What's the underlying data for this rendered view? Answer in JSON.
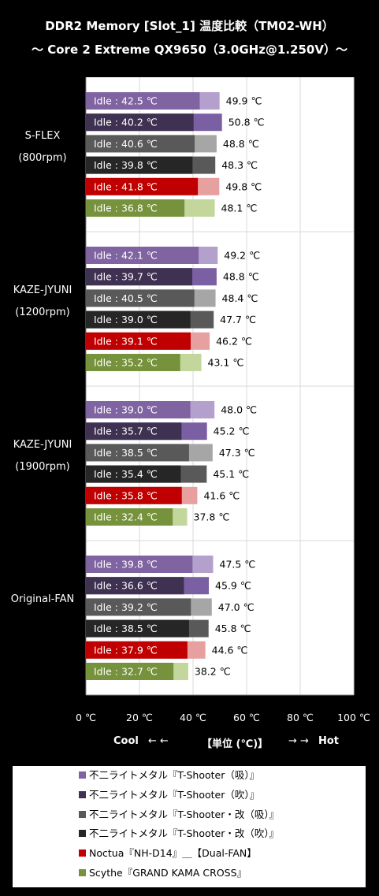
{
  "chart_data": {
    "type": "bar",
    "title": "DDR2 Memory [Slot_1] 温度比較（TM02-WH）",
    "subtitle": "～ Core 2 Extreme QX9650（3.0GHz@1.250V）～",
    "xlim": [
      0,
      100
    ],
    "xticks": [
      "0 ℃",
      "20 ℃",
      "40 ℃",
      "60 ℃",
      "80 ℃",
      "100 ℃"
    ],
    "xlabel": "【単位 (℃)】",
    "xlabel_left": "Cool",
    "xlabel_left_arrows": "← ←",
    "xlabel_right": "Hot",
    "xlabel_right_arrows": "→ →",
    "grid": true,
    "series": [
      {
        "name": "不二ライトメタル『T-Shooter（吸）』",
        "color_dark": "#8064a2",
        "color_light": "#b4a0cc"
      },
      {
        "name": "不二ライトメタル『T-Shooter（吹）』",
        "color_dark": "#3f3151",
        "color_light": "#7a5fa3"
      },
      {
        "name": "不二ライトメタル『T-Shooter・改（吸）』",
        "color_dark": "#595959",
        "color_light": "#a6a6a6"
      },
      {
        "name": "不二ライトメタル『T-Shooter・改（吹）』",
        "color_dark": "#262626",
        "color_light": "#595959"
      },
      {
        "name": "Noctua『NH-D14』＿【Dual-FAN】",
        "color_dark": "#c00000",
        "color_light": "#e6a0a0"
      },
      {
        "name": "Scythe『GRAND KAMA CROSS』",
        "color_dark": "#76923c",
        "color_light": "#c3d69b"
      }
    ],
    "groups": [
      {
        "label_line1": "S-FLEX",
        "label_line2": "(800rpm)",
        "idle": [
          42.5,
          40.2,
          40.6,
          39.8,
          41.8,
          36.8
        ],
        "load": [
          49.9,
          50.8,
          48.8,
          48.3,
          49.8,
          48.1
        ]
      },
      {
        "label_line1": "KAZE-JYUNI",
        "label_line2": "(1200rpm)",
        "idle": [
          42.1,
          39.7,
          40.5,
          39.0,
          39.1,
          35.2
        ],
        "load": [
          49.2,
          48.8,
          48.4,
          47.7,
          46.2,
          43.1
        ]
      },
      {
        "label_line1": "KAZE-JYUNI",
        "label_line2": "(1900rpm)",
        "idle": [
          39.0,
          35.7,
          38.5,
          35.4,
          35.8,
          32.4
        ],
        "load": [
          48.0,
          45.2,
          47.3,
          45.1,
          41.6,
          37.8
        ]
      },
      {
        "label_line1": "Original-FAN",
        "label_line2": "",
        "idle": [
          39.8,
          36.6,
          39.2,
          38.5,
          37.9,
          32.7
        ],
        "load": [
          47.5,
          45.9,
          47.0,
          45.8,
          44.6,
          38.2
        ]
      }
    ],
    "idle_prefix": "Idle : ",
    "unit": " ℃"
  }
}
